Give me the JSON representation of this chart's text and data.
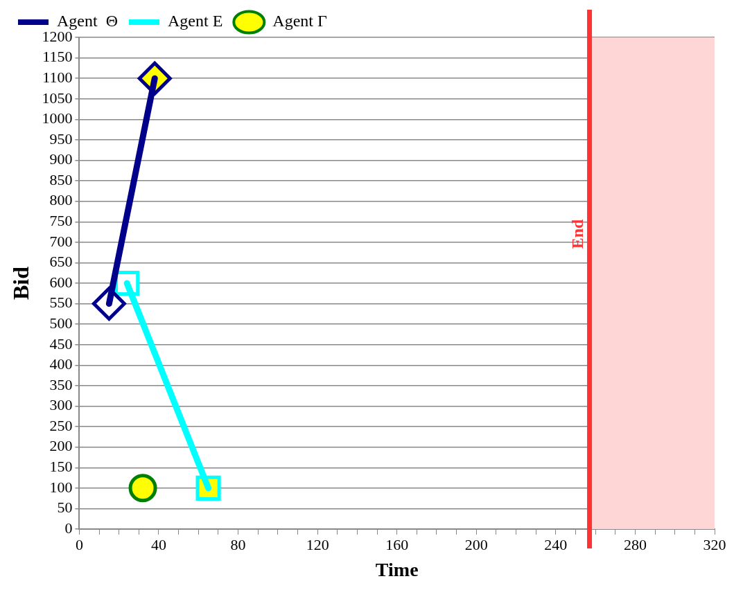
{
  "chart_data": {
    "type": "line",
    "xlabel": "Time",
    "ylabel": "Bid",
    "xlim": [
      0,
      320
    ],
    "xticks": [
      0,
      {
        "value": 10,
        "label": null
      },
      {
        "value": 20,
        "label": null
      },
      {
        "value": 30,
        "label": null
      },
      40,
      {
        "value": 50,
        "label": null
      },
      {
        "value": 60,
        "label": null
      },
      {
        "value": 70,
        "label": null
      },
      80,
      {
        "value": 90,
        "label": null
      },
      {
        "value": 100,
        "label": null
      },
      {
        "value": 110,
        "label": null
      },
      120,
      {
        "value": 130,
        "label": null
      },
      {
        "value": 140,
        "label": null
      },
      {
        "value": 150,
        "label": null
      },
      160,
      {
        "value": 170,
        "label": null
      },
      {
        "value": 180,
        "label": null
      },
      {
        "value": 190,
        "label": null
      },
      200,
      {
        "value": 210,
        "label": null
      },
      {
        "value": 220,
        "label": null
      },
      {
        "value": 230,
        "label": null
      },
      240,
      {
        "value": 250,
        "label": null
      },
      {
        "value": 260,
        "label": null
      },
      {
        "value": 270,
        "label": null
      },
      280,
      {
        "value": 290,
        "label": null
      },
      {
        "value": 300,
        "label": null
      },
      {
        "value": 310,
        "label": null
      },
      320
    ],
    "ylim": [
      0,
      1200
    ],
    "yticks": [
      0,
      50,
      100,
      150,
      200,
      250,
      300,
      350,
      400,
      450,
      500,
      550,
      600,
      650,
      700,
      750,
      800,
      850,
      900,
      950,
      1000,
      1050,
      1100,
      1150,
      1200
    ],
    "grid": "y",
    "legend": "top left",
    "line_style": "solid",
    "series": [
      {
        "name": "Agent  Θ",
        "color": "#00008b",
        "marker": "diamond",
        "x": [
          15,
          38
        ],
        "values": [
          550,
          1100
        ],
        "colors": [
          "#ffffff",
          "#ffff00"
        ]
      },
      {
        "name": "Agent E",
        "color": "#00ffff",
        "marker": "square",
        "x": [
          24,
          65
        ],
        "values": [
          600,
          100
        ],
        "colors": [
          "#ffffff",
          "#ffff00"
        ]
      },
      {
        "name": "Agent Γ",
        "color": "#008000",
        "marker": "circle",
        "x": [
          32
        ],
        "values": [
          100
        ],
        "colors": [
          "#ffff00"
        ]
      }
    ],
    "ref_lines": [
      {
        "axis": "x",
        "value": 257,
        "label": "End",
        "color": "#ff3333",
        "line_style": "solid"
      }
    ],
    "bands": [
      {
        "axis": "x",
        "from": 257,
        "to": 320,
        "color": "#ffd6d6"
      }
    ]
  }
}
